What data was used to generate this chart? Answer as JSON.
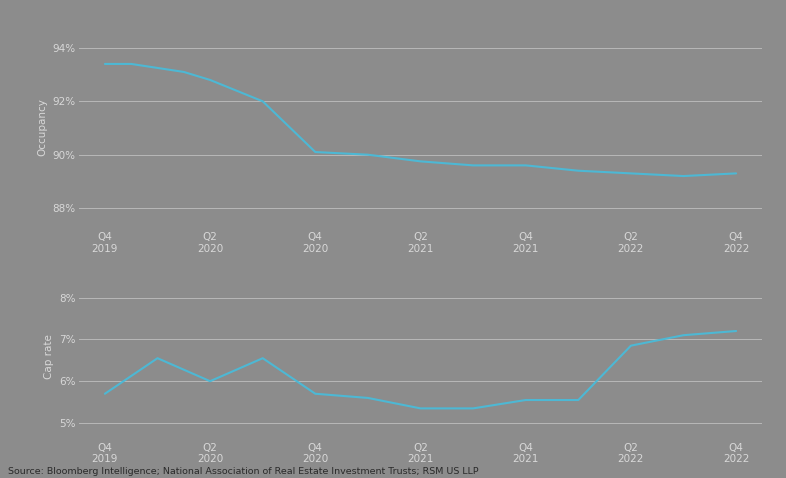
{
  "background_color": "#8c8c8c",
  "plot_bg_color": "#8c8c8c",
  "line_color": "#4db8d4",
  "grid_color": "#b8b8b8",
  "label_color": "#d8d8d8",
  "source_color": "#2a2a2a",
  "source_text": "Source: Bloomberg Intelligence; National Association of Real Estate Investment Trusts; RSM US LLP",
  "x_labels": [
    "Q4\n2019",
    "Q2\n2020",
    "Q4\n2020",
    "Q2\n2021",
    "Q4\n2021",
    "Q2\n2022",
    "Q4\n2022"
  ],
  "x_positions": [
    0,
    2,
    4,
    6,
    8,
    10,
    12
  ],
  "occupancy": {
    "ylabel": "Occupancy",
    "yticks": [
      88,
      90,
      92,
      94
    ],
    "ytick_labels": [
      "88%",
      "90%",
      "92%",
      "94%"
    ],
    "ylim": [
      87.2,
      94.9
    ],
    "x": [
      0,
      0.5,
      1.5,
      2,
      3,
      4,
      5,
      6,
      7,
      8,
      9,
      10,
      11,
      12
    ],
    "y": [
      93.4,
      93.4,
      93.1,
      92.8,
      92.0,
      90.1,
      90.0,
      89.75,
      89.6,
      89.6,
      89.4,
      89.3,
      89.2,
      89.3
    ]
  },
  "caprate": {
    "ylabel": "Cap rate",
    "yticks": [
      5,
      6,
      7,
      8
    ],
    "ytick_labels": [
      "5%",
      "6%",
      "7%",
      "8%"
    ],
    "ylim": [
      4.6,
      8.6
    ],
    "x": [
      0,
      1,
      2,
      3,
      4,
      5,
      6,
      7,
      8,
      9,
      10,
      11,
      12
    ],
    "y": [
      5.7,
      6.55,
      6.0,
      6.55,
      5.7,
      5.6,
      5.35,
      5.35,
      5.55,
      5.55,
      6.85,
      7.1,
      7.2
    ]
  }
}
